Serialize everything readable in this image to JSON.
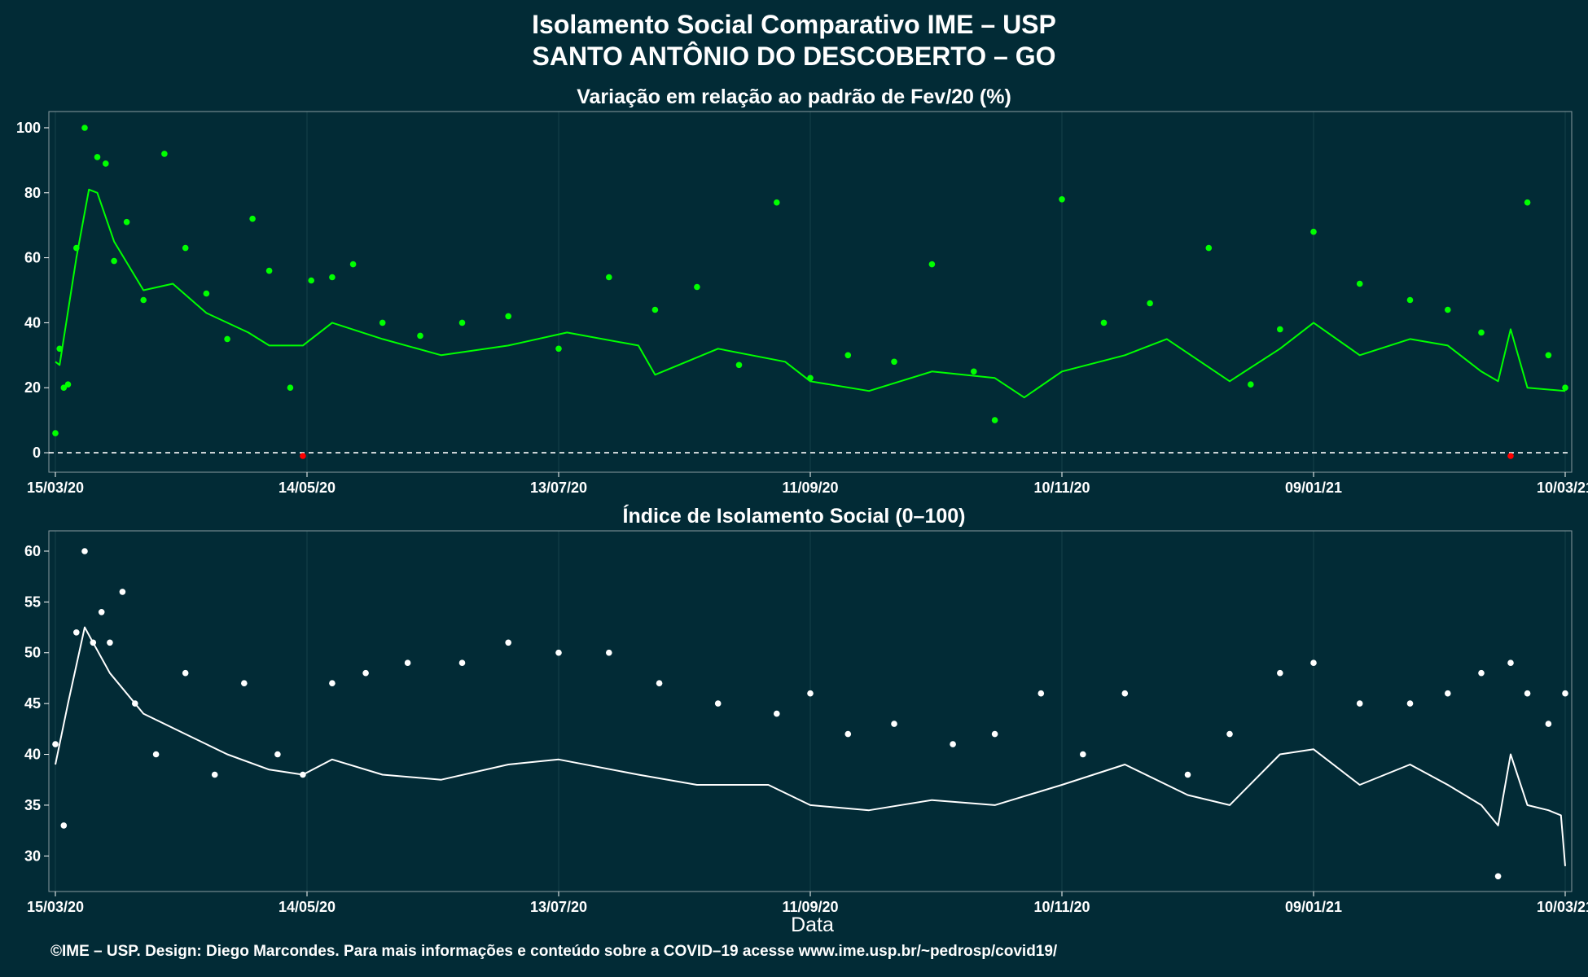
{
  "header": {
    "title_line1": "Isolamento Social Comparativo IME – USP",
    "title_line2": "SANTO ANTÔNIO DO DESCOBERTO – GO"
  },
  "footer": {
    "xlabel": "Data",
    "caption": "©IME – USP. Design: Diego Marcondes. Para mais informações e conteúdo sobre a COVID–19 acesse www.ime.usp.br/~pedrosp/covid19/"
  },
  "colors": {
    "background": "#022b36",
    "points_variation": "#00ff00",
    "points_negative": "#ff0000",
    "points_index": "#ffffff",
    "grid": "#16424a"
  },
  "chart_data": [
    {
      "type": "scatter",
      "title": "Variação em relação ao padrão de Fev/20 (%)",
      "xlabel": "",
      "ylabel": "",
      "x_ticks": [
        "15/03/20",
        "14/05/20",
        "13/07/20",
        "11/09/20",
        "10/11/20",
        "09/01/21",
        "10/03/21"
      ],
      "xlim": [
        "2020-03-15",
        "2021-03-10"
      ],
      "ylim": [
        -6,
        105
      ],
      "y_ticks": [
        0,
        20,
        40,
        60,
        80,
        100
      ],
      "reference_line": 0,
      "grid": true,
      "series": [
        {
          "kind": "points",
          "x": [
            "2020-03-15",
            "2020-03-16",
            "2020-03-17",
            "2020-03-18",
            "2020-03-20",
            "2020-03-22",
            "2020-03-25",
            "2020-03-27",
            "2020-03-29",
            "2020-04-01",
            "2020-04-05",
            "2020-04-10",
            "2020-04-15",
            "2020-04-20",
            "2020-04-25",
            "2020-05-01",
            "2020-05-05",
            "2020-05-10",
            "2020-05-13",
            "2020-05-15",
            "2020-05-20",
            "2020-05-25",
            "2020-06-01",
            "2020-06-10",
            "2020-06-20",
            "2020-07-01",
            "2020-07-13",
            "2020-07-25",
            "2020-08-05",
            "2020-08-15",
            "2020-08-25",
            "2020-09-03",
            "2020-09-11",
            "2020-09-20",
            "2020-10-01",
            "2020-10-10",
            "2020-10-20",
            "2020-10-25",
            "2020-11-10",
            "2020-11-20",
            "2020-12-01",
            "2020-12-15",
            "2020-12-25",
            "2021-01-01",
            "2021-01-09",
            "2021-01-20",
            "2021-02-01",
            "2021-02-10",
            "2021-02-18",
            "2021-02-25",
            "2021-03-01",
            "2021-03-06",
            "2021-03-10"
          ],
          "values": [
            6,
            32,
            20,
            21,
            63,
            100,
            91,
            89,
            59,
            71,
            47,
            92,
            63,
            49,
            35,
            72,
            56,
            20,
            -1,
            53,
            54,
            58,
            40,
            36,
            40,
            42,
            32,
            54,
            44,
            51,
            27,
            77,
            23,
            30,
            28,
            58,
            25,
            10,
            78,
            40,
            46,
            63,
            21,
            38,
            68,
            52,
            47,
            44,
            37,
            -1,
            77,
            30,
            20
          ]
        },
        {
          "kind": "line",
          "name": "",
          "x": [
            "2020-03-15",
            "2020-03-16",
            "2020-03-20",
            "2020-03-23",
            "2020-03-25",
            "2020-03-29",
            "2020-04-05",
            "2020-04-12",
            "2020-04-20",
            "2020-04-30",
            "2020-05-05",
            "2020-05-13",
            "2020-05-20",
            "2020-06-01",
            "2020-06-15",
            "2020-07-01",
            "2020-07-15",
            "2020-08-01",
            "2020-08-05",
            "2020-08-20",
            "2020-09-05",
            "2020-09-11",
            "2020-09-25",
            "2020-10-10",
            "2020-10-25",
            "2020-11-01",
            "2020-11-10",
            "2020-11-25",
            "2020-12-05",
            "2020-12-20",
            "2021-01-01",
            "2021-01-09",
            "2021-01-20",
            "2021-02-01",
            "2021-02-10",
            "2021-02-18",
            "2021-02-22",
            "2021-02-25",
            "2021-03-01",
            "2021-03-10"
          ],
          "values": [
            28,
            27,
            60,
            81,
            80,
            65,
            50,
            52,
            43,
            37,
            33,
            33,
            40,
            35,
            30,
            33,
            37,
            33,
            24,
            32,
            28,
            22,
            19,
            25,
            23,
            17,
            25,
            30,
            35,
            22,
            32,
            40,
            30,
            35,
            33,
            25,
            22,
            38,
            20,
            19
          ]
        }
      ]
    },
    {
      "type": "scatter",
      "title": "Índice de Isolamento Social (0–100)",
      "xlabel": "Data",
      "ylabel": "",
      "x_ticks": [
        "15/03/20",
        "14/05/20",
        "13/07/20",
        "11/09/20",
        "10/11/20",
        "09/01/21",
        "10/03/21"
      ],
      "xlim": [
        "2020-03-15",
        "2021-03-10"
      ],
      "ylim": [
        26.5,
        62
      ],
      "y_ticks": [
        30,
        35,
        40,
        45,
        50,
        55,
        60
      ],
      "grid": true,
      "series": [
        {
          "kind": "points",
          "x": [
            "2020-03-15",
            "2020-03-17",
            "2020-03-20",
            "2020-03-22",
            "2020-03-24",
            "2020-03-26",
            "2020-03-28",
            "2020-03-31",
            "2020-04-03",
            "2020-04-08",
            "2020-04-15",
            "2020-04-22",
            "2020-04-29",
            "2020-05-07",
            "2020-05-13",
            "2020-05-20",
            "2020-05-28",
            "2020-06-07",
            "2020-06-20",
            "2020-07-01",
            "2020-07-13",
            "2020-07-25",
            "2020-08-06",
            "2020-08-20",
            "2020-09-03",
            "2020-09-11",
            "2020-09-20",
            "2020-10-01",
            "2020-10-15",
            "2020-10-25",
            "2020-11-05",
            "2020-11-15",
            "2020-11-25",
            "2020-12-10",
            "2020-12-20",
            "2021-01-01",
            "2021-01-09",
            "2021-01-20",
            "2021-02-01",
            "2021-02-10",
            "2021-02-18",
            "2021-02-22",
            "2021-02-25",
            "2021-03-01",
            "2021-03-06",
            "2021-03-10"
          ],
          "values": [
            41,
            33,
            52,
            60,
            51,
            54,
            51,
            56,
            45,
            40,
            48,
            38,
            47,
            40,
            38,
            47,
            48,
            49,
            49,
            51,
            50,
            50,
            47,
            45,
            44,
            46,
            42,
            43,
            41,
            42,
            46,
            40,
            46,
            38,
            42,
            48,
            49,
            45,
            45,
            46,
            48,
            28,
            49,
            46,
            43,
            46
          ]
        },
        {
          "kind": "line",
          "name": "",
          "x": [
            "2020-03-15",
            "2020-03-18",
            "2020-03-22",
            "2020-03-24",
            "2020-03-28",
            "2020-04-05",
            "2020-04-15",
            "2020-04-25",
            "2020-05-05",
            "2020-05-13",
            "2020-05-20",
            "2020-06-01",
            "2020-06-15",
            "2020-07-01",
            "2020-07-13",
            "2020-08-01",
            "2020-08-15",
            "2020-09-01",
            "2020-09-11",
            "2020-09-25",
            "2020-10-10",
            "2020-10-25",
            "2020-11-10",
            "2020-11-25",
            "2020-12-10",
            "2020-12-20",
            "2021-01-01",
            "2021-01-09",
            "2021-01-20",
            "2021-02-01",
            "2021-02-10",
            "2021-02-18",
            "2021-02-22",
            "2021-02-25",
            "2021-03-01",
            "2021-03-06",
            "2021-03-09",
            "2021-03-10"
          ],
          "values": [
            39,
            45,
            52.5,
            51,
            48,
            44,
            42,
            40,
            38.5,
            38,
            39.5,
            38,
            37.5,
            39,
            39.5,
            38,
            37,
            37,
            35,
            34.5,
            35.5,
            35,
            37,
            39,
            36,
            35,
            40,
            40.5,
            37,
            39,
            37,
            35,
            33,
            40,
            35,
            34.5,
            34,
            29
          ]
        }
      ]
    }
  ]
}
